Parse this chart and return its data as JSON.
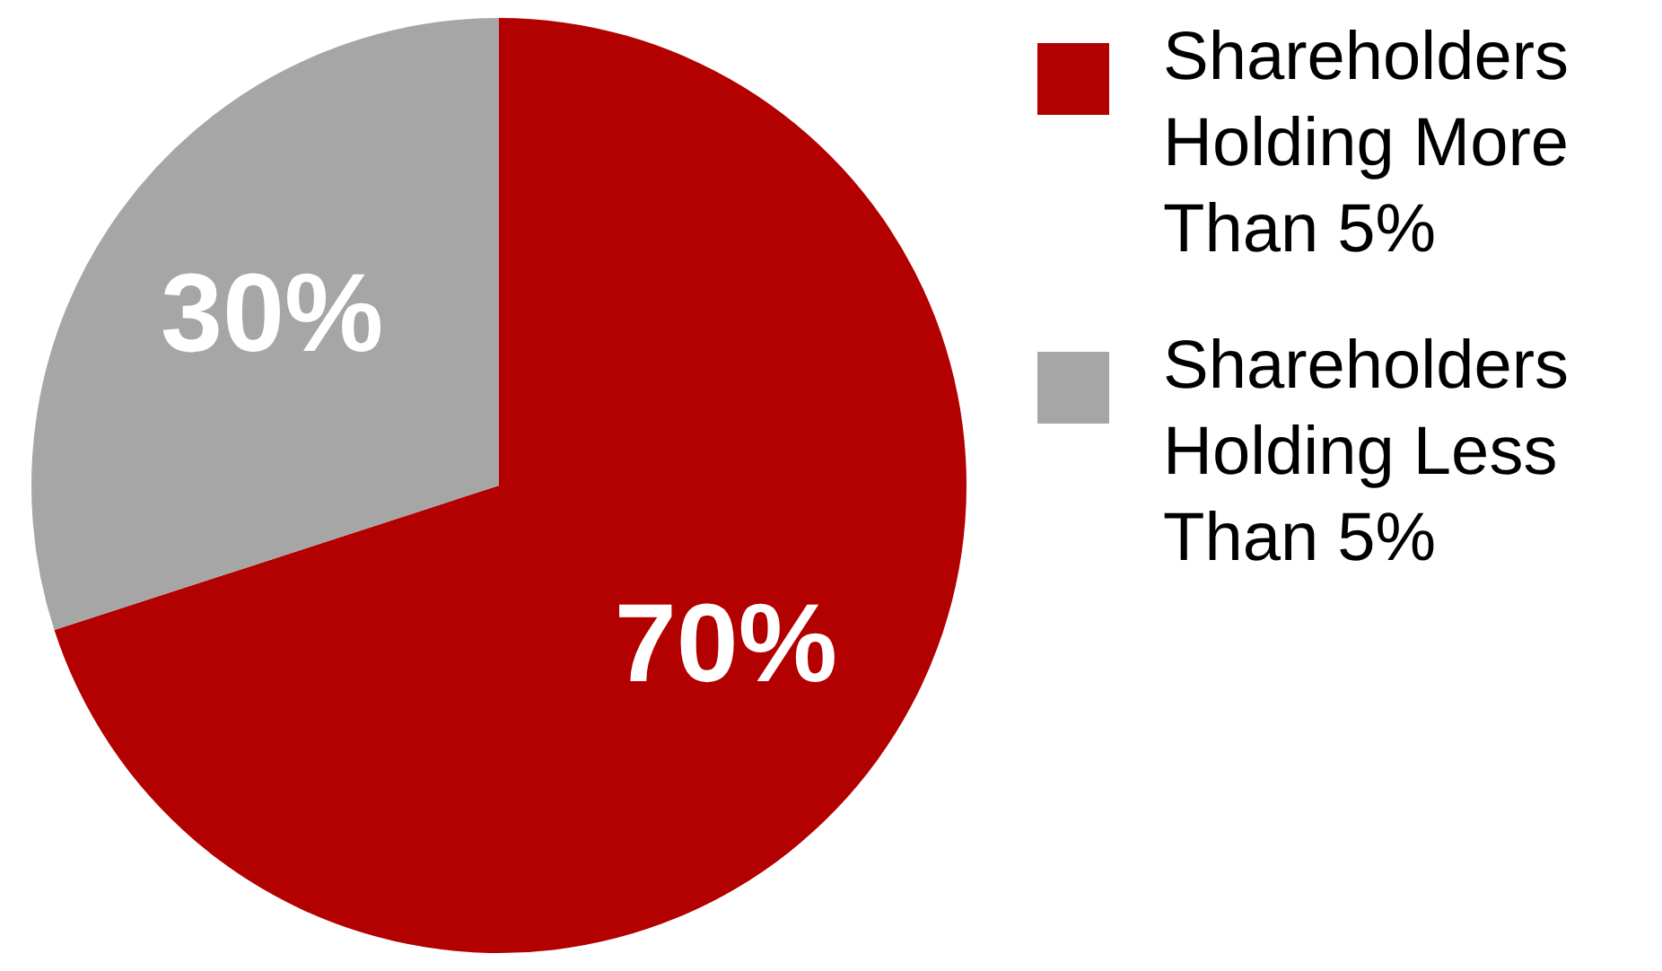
{
  "chart_data": {
    "type": "pie",
    "categories": [
      "Shareholders Holding More Than 5%",
      "Shareholders Holding Less Than 5%"
    ],
    "values": [
      70,
      30
    ],
    "colors": [
      "#b30000",
      "#a6a6a6"
    ],
    "value_labels": [
      "70%",
      "30%"
    ],
    "legend": "right"
  }
}
